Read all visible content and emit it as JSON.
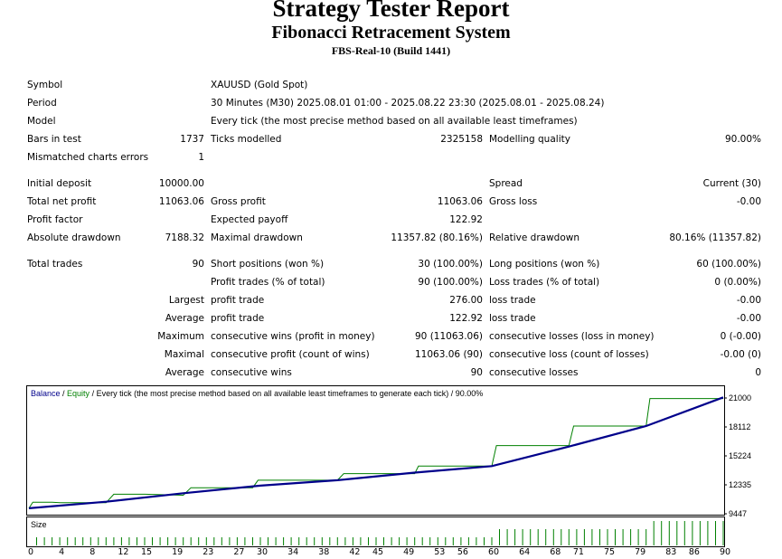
{
  "header": {
    "title": "Strategy Tester Report",
    "subtitle": "Fibonacci Retracement System",
    "server": "FBS-Real-10 (Build 1441)"
  },
  "info": {
    "symbol_label": "Symbol",
    "symbol_value": "XAUUSD (Gold Spot)",
    "period_label": "Period",
    "period_value": "30 Minutes (M30) 2025.08.01 01:00 - 2025.08.22 23:30 (2025.08.01 - 2025.08.24)",
    "model_label": "Model",
    "model_value": "Every tick (the most precise method based on all available least timeframes)",
    "bars_label": "Bars in test",
    "bars_value": "1737",
    "ticks_label": "Ticks modelled",
    "ticks_value": "2325158",
    "quality_label": "Modelling quality",
    "quality_value": "90.00%",
    "mismatch_label": "Mismatched charts errors",
    "mismatch_value": "1"
  },
  "results": {
    "deposit_label": "Initial deposit",
    "deposit_value": "10000.00",
    "spread_label": "Spread",
    "spread_value": "Current (30)",
    "net_label": "Total net profit",
    "net_value": "11063.06",
    "gross_profit_label": "Gross profit",
    "gross_profit_value": "11063.06",
    "gross_loss_label": "Gross loss",
    "gross_loss_value": "-0.00",
    "pf_label": "Profit factor",
    "ep_label": "Expected payoff",
    "ep_value": "122.92",
    "abs_dd_label": "Absolute drawdown",
    "abs_dd_value": "7188.32",
    "max_dd_label": "Maximal drawdown",
    "max_dd_value": "11357.82 (80.16%)",
    "rel_dd_label": "Relative drawdown",
    "rel_dd_value": "80.16% (11357.82)"
  },
  "trades": {
    "total_label": "Total trades",
    "total_value": "90",
    "short_label": "Short positions (won %)",
    "short_value": "30 (100.00%)",
    "long_label": "Long positions (won %)",
    "long_value": "60 (100.00%)",
    "profit_trades_label": "Profit trades (% of total)",
    "profit_trades_value": "90 (100.00%)",
    "loss_trades_label": "Loss trades (% of total)",
    "loss_trades_value": "0 (0.00%)",
    "largest_label": "Largest",
    "largest_profit_label": "profit trade",
    "largest_profit_value": "276.00",
    "largest_loss_label": "loss trade",
    "largest_loss_value": "-0.00",
    "average_label": "Average",
    "average_profit_label": "profit trade",
    "average_profit_value": "122.92",
    "average_loss_label": "loss trade",
    "average_loss_value": "-0.00",
    "maximum_label": "Maximum",
    "max_wins_label": "consecutive wins (profit in money)",
    "max_wins_value": "90 (11063.06)",
    "max_losses_label": "consecutive losses (loss in money)",
    "max_losses_value": "0 (-0.00)",
    "maximal_label": "Maximal",
    "maximal_profit_label": "consecutive profit (count of wins)",
    "maximal_profit_value": "11063.06 (90)",
    "maximal_loss_label": "consecutive loss (count of losses)",
    "maximal_loss_value": "-0.00 (0)",
    "average2_label": "Average",
    "avg_wins_label": "consecutive wins",
    "avg_wins_value": "90",
    "avg_losses_label": "consecutive losses",
    "avg_losses_value": "0"
  },
  "chart_data": {
    "type": "line",
    "legend_balance": "Balance",
    "legend_sep1": " / ",
    "legend_equity": "Equity",
    "legend_rest": " / Every tick (the most precise method based on all available least timeframes to generate each tick) / 90.00%",
    "balance_color": "#00008b",
    "equity_color": "#008000",
    "size_color": "#008000",
    "size_label": "Size",
    "ylim": [
      9447,
      21000
    ],
    "y_ticks": [
      "21000",
      "18112",
      "15224",
      "12335",
      "9447"
    ],
    "x_ticks": [
      "0",
      "4",
      "8",
      "12",
      "15",
      "19",
      "23",
      "27",
      "30",
      "34",
      "38",
      "42",
      "45",
      "49",
      "53",
      "56",
      "60",
      "64",
      "68",
      "71",
      "75",
      "79",
      "83",
      "86",
      "90"
    ],
    "x_range": [
      0,
      90
    ],
    "balance": [
      [
        0,
        10000
      ],
      [
        10,
        10650
      ],
      [
        20,
        11500
      ],
      [
        30,
        12250
      ],
      [
        40,
        12800
      ],
      [
        50,
        13550
      ],
      [
        60,
        14200
      ],
      [
        70,
        16150
      ],
      [
        80,
        18200
      ],
      [
        90,
        21063
      ]
    ],
    "equity": [
      [
        0,
        10000
      ],
      [
        0.5,
        10600
      ],
      [
        3,
        10600
      ],
      [
        4,
        10550
      ],
      [
        10,
        10550
      ],
      [
        11,
        11400
      ],
      [
        15,
        11400
      ],
      [
        20,
        11300
      ],
      [
        21,
        12050
      ],
      [
        29,
        12050
      ],
      [
        29.7,
        12800
      ],
      [
        40,
        12800
      ],
      [
        40.8,
        13450
      ],
      [
        50,
        13450
      ],
      [
        50.5,
        14200
      ],
      [
        60,
        14200
      ],
      [
        60.6,
        16250
      ],
      [
        70,
        16250
      ],
      [
        70.6,
        18200
      ],
      [
        80,
        18200
      ],
      [
        80.5,
        20950
      ],
      [
        90,
        20950
      ]
    ],
    "sizes": [
      {
        "from": 1,
        "to": 60,
        "v": 0.15
      },
      {
        "from": 61,
        "to": 80,
        "v": 0.3
      },
      {
        "from": 81,
        "to": 90,
        "v": 0.45
      }
    ]
  }
}
